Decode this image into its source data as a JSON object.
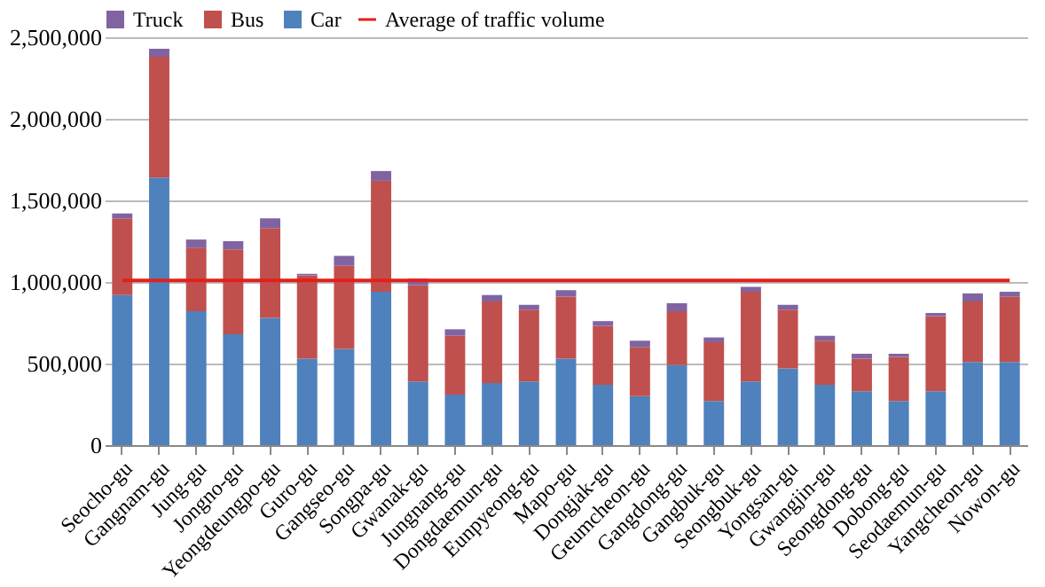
{
  "chart_data": {
    "type": "bar",
    "stacked": true,
    "categories": [
      "Seocho-gu",
      "Gangnam-gu",
      "Jung-gu",
      "Jongno-gu",
      "Yeongdeungpo-gu",
      "Guro-gu",
      "Gangseo-gu",
      "Songpa-gu",
      "Gwanak-gu",
      "Jungnang-gu",
      "Dongdaemun-gu",
      "Eunpyeong-gu",
      "Mapo-gu",
      "Dongjak-gu",
      "Geumcheon-gu",
      "Gangdong-gu",
      "Gangbuk-gu",
      "Seongbuk-gu",
      "Yongsan-gu",
      "Gwangjin-gu",
      "Seongdong-gu",
      "Dobong-gu",
      "Seodaemun-gu",
      "Yangcheon-gu",
      "Nowon-gu"
    ],
    "series": [
      {
        "name": "Car",
        "color": "#4f81bd",
        "values": [
          920000,
          1640000,
          820000,
          680000,
          780000,
          530000,
          590000,
          940000,
          390000,
          310000,
          380000,
          390000,
          530000,
          370000,
          300000,
          490000,
          270000,
          390000,
          470000,
          370000,
          330000,
          270000,
          330000,
          510000,
          510000
        ]
      },
      {
        "name": "Bus",
        "color": "#c0504d",
        "values": [
          470000,
          740000,
          390000,
          520000,
          550000,
          510000,
          510000,
          680000,
          590000,
          360000,
          500000,
          440000,
          380000,
          360000,
          300000,
          330000,
          360000,
          550000,
          360000,
          270000,
          200000,
          270000,
          460000,
          370000,
          400000
        ]
      },
      {
        "name": "Truck",
        "color": "#8064a2",
        "values": [
          30000,
          50000,
          50000,
          50000,
          60000,
          10000,
          60000,
          60000,
          40000,
          40000,
          40000,
          30000,
          40000,
          30000,
          40000,
          50000,
          30000,
          30000,
          30000,
          30000,
          30000,
          20000,
          20000,
          50000,
          30000
        ]
      },
      {
        "name": "Average of traffic volume",
        "type": "line",
        "color": "#e3201b",
        "values": [
          1010000,
          1010000,
          1010000,
          1010000,
          1010000,
          1010000,
          1010000,
          1010000,
          1010000,
          1010000,
          1010000,
          1010000,
          1010000,
          1010000,
          1010000,
          1010000,
          1010000,
          1010000,
          1010000,
          1010000,
          1010000,
          1010000,
          1010000,
          1010000,
          1010000
        ]
      }
    ],
    "ylim": [
      0,
      2500000
    ],
    "yticks": [
      0,
      {
        "value": 500000,
        "label": "500,000"
      },
      {
        "value": 1000000,
        "label": "1,000,000"
      },
      {
        "value": 1500000,
        "label": "1,500,000"
      },
      {
        "value": 2000000,
        "label": "2,000,000"
      },
      {
        "value": 2500000,
        "label": "2,500,000"
      }
    ],
    "grid": "y",
    "legend": "top"
  }
}
